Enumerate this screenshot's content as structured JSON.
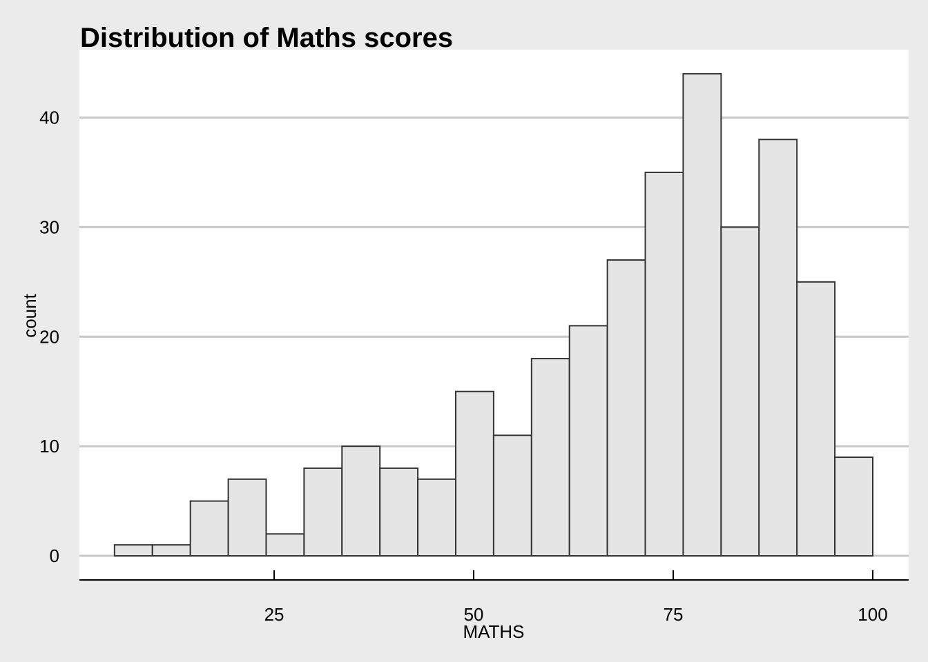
{
  "chart_data": {
    "type": "bar",
    "title": "Distribution of Maths scores",
    "xlabel": "MATHS",
    "ylabel": "count",
    "bin_width": 4.75,
    "bins": [
      {
        "start": 5.0,
        "end": 9.75,
        "count": 1
      },
      {
        "start": 9.75,
        "end": 14.5,
        "count": 1
      },
      {
        "start": 14.5,
        "end": 19.25,
        "count": 5
      },
      {
        "start": 19.25,
        "end": 24.0,
        "count": 7
      },
      {
        "start": 24.0,
        "end": 28.75,
        "count": 2
      },
      {
        "start": 28.75,
        "end": 33.5,
        "count": 8
      },
      {
        "start": 33.5,
        "end": 38.25,
        "count": 10
      },
      {
        "start": 38.25,
        "end": 43.0,
        "count": 8
      },
      {
        "start": 43.0,
        "end": 47.75,
        "count": 7
      },
      {
        "start": 47.75,
        "end": 52.5,
        "count": 15
      },
      {
        "start": 52.5,
        "end": 57.25,
        "count": 11
      },
      {
        "start": 57.25,
        "end": 62.0,
        "count": 18
      },
      {
        "start": 62.0,
        "end": 66.75,
        "count": 21
      },
      {
        "start": 66.75,
        "end": 71.5,
        "count": 27
      },
      {
        "start": 71.5,
        "end": 76.25,
        "count": 35
      },
      {
        "start": 76.25,
        "end": 81.0,
        "count": 44
      },
      {
        "start": 81.0,
        "end": 85.75,
        "count": 30
      },
      {
        "start": 85.75,
        "end": 90.5,
        "count": 38
      },
      {
        "start": 90.5,
        "end": 95.25,
        "count": 25
      },
      {
        "start": 95.25,
        "end": 100.0,
        "count": 9
      }
    ],
    "xlim": [
      0.6,
      104.5
    ],
    "ylim": [
      -2.2,
      46.2
    ],
    "xticks": [
      25,
      50,
      75,
      100
    ],
    "yticks": [
      0,
      10,
      20,
      30,
      40
    ],
    "grid": "horizontal",
    "legend": "none",
    "colors": {
      "background": "#ebebeb",
      "panel": "#ffffff",
      "grid": "#c8c8c8",
      "bar_fill": "#e5e5e5",
      "bar_stroke": "#333333",
      "axis": "#000000"
    }
  }
}
